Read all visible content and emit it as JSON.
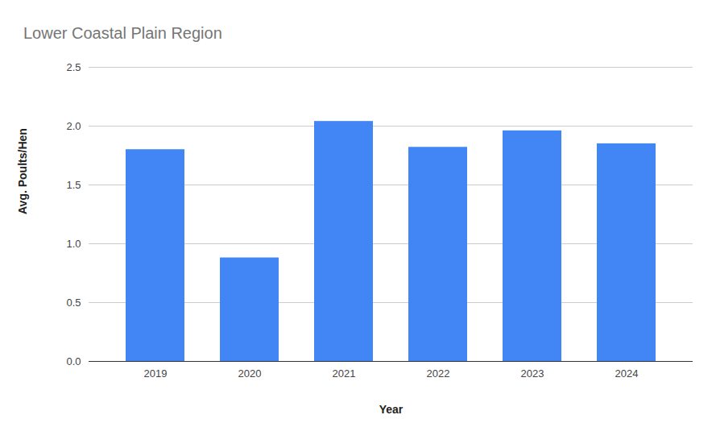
{
  "chart_data": {
    "type": "bar",
    "title": "Lower Coastal Plain Region",
    "x_label": "Year",
    "y_label": "Avg. Poults/Hen",
    "categories": [
      "2019",
      "2020",
      "2021",
      "2022",
      "2023",
      "2024"
    ],
    "values": [
      1.8,
      0.88,
      2.04,
      1.82,
      1.96,
      1.85
    ],
    "color": "#4285f4",
    "ylim": [
      0,
      2.5
    ],
    "yticks": [
      {
        "value": 0,
        "label": "0.0"
      },
      {
        "value": 0.5,
        "label": "0.5"
      },
      {
        "value": 1,
        "label": "1.0"
      },
      {
        "value": 1.5,
        "label": "1.5"
      },
      {
        "value": 2,
        "label": "2.0"
      },
      {
        "value": 2.5,
        "label": "2.5"
      }
    ],
    "grid": true
  }
}
